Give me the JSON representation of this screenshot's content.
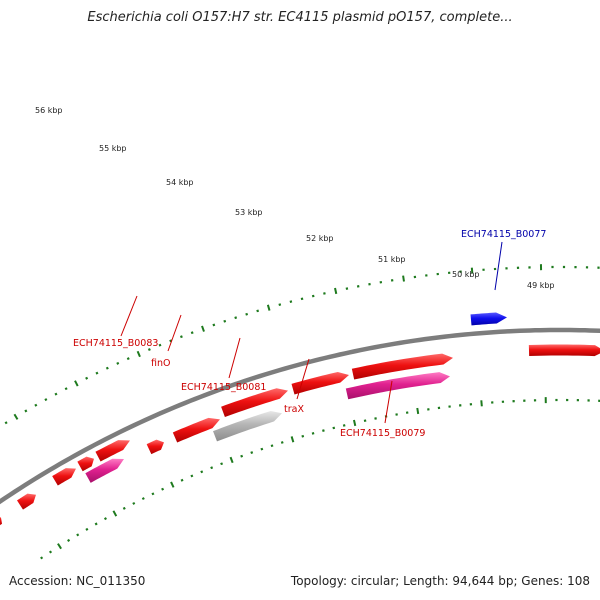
{
  "title": "Escherichia coli O157:H7 str. EC4115 plasmid pO157, complete...",
  "footer": {
    "accession": "Accession: NC_011350",
    "summary": "Topology: circular; Length: 94,644 bp; Genes: 108"
  },
  "colors": {
    "backbone": "#7d7d7d",
    "tick": "#1e7a1e",
    "gene_red": "#ee1111",
    "gene_pink": "#e0208f",
    "gene_gray": "#b4b4b4",
    "gene_blue": "#1010ee",
    "label_red": "#cc0000",
    "label_blue": "#0000aa"
  },
  "kbp_markers": [
    "56 kbp",
    "55 kbp",
    "54 kbp",
    "53 kbp",
    "52 kbp",
    "51 kbp",
    "50 kbp",
    "49 kbp"
  ],
  "gene_labels": [
    {
      "name": "ECH74115_B0077",
      "color": "blue"
    },
    {
      "name": "ECH74115_B0083",
      "color": "red"
    },
    {
      "name": "finO",
      "color": "red"
    },
    {
      "name": "ECH74115_B0081",
      "color": "red"
    },
    {
      "name": "traX",
      "color": "red"
    },
    {
      "name": "ECH74115_B0079",
      "color": "red"
    }
  ]
}
